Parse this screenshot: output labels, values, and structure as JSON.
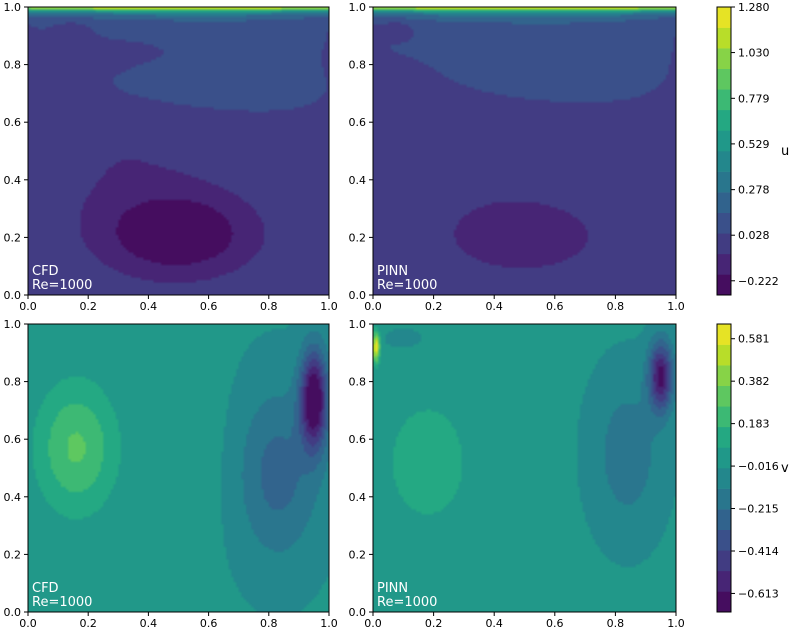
{
  "chart_data": [
    {
      "type": "heatmap",
      "panel": "u-cfd",
      "field": "u",
      "annotation": [
        "CFD",
        "Re=1000"
      ],
      "xlim": [
        0.0,
        1.0
      ],
      "ylim": [
        0.0,
        1.0
      ],
      "xticks": [
        "0.0",
        "0.2",
        "0.4",
        "0.6",
        "0.8",
        "1.0"
      ],
      "yticks": [
        "0.0",
        "0.2",
        "0.4",
        "0.6",
        "0.8",
        "1.0"
      ],
      "value_range": [
        -0.3,
        1.28
      ],
      "primary_vortex_center": [
        0.5,
        0.21
      ],
      "min_value_approx": -0.3,
      "lid_value": 1.28
    },
    {
      "type": "heatmap",
      "panel": "u-pinn",
      "field": "u",
      "annotation": [
        "PINN",
        "Re=1000"
      ],
      "xlim": [
        0.0,
        1.0
      ],
      "ylim": [
        0.0,
        1.0
      ],
      "xticks": [
        "0.0",
        "0.2",
        "0.4",
        "0.6",
        "0.8",
        "1.0"
      ],
      "yticks": [
        "0.0",
        "0.2",
        "0.4",
        "0.6",
        "0.8",
        "1.0"
      ],
      "value_range": [
        -0.3,
        1.28
      ],
      "primary_vortex_center": [
        0.5,
        0.2
      ],
      "min_value_approx": -0.14,
      "lid_value": 1.28
    },
    {
      "type": "heatmap",
      "panel": "v-cfd",
      "field": "v",
      "annotation": [
        "CFD",
        "Re=1000"
      ],
      "xlim": [
        0.0,
        1.0
      ],
      "ylim": [
        0.0,
        1.0
      ],
      "xticks": [
        "0.0",
        "0.2",
        "0.4",
        "0.6",
        "0.8",
        "1.0"
      ],
      "yticks": [
        "0.0",
        "0.2",
        "0.4",
        "0.6",
        "0.8",
        "1.0"
      ],
      "value_range": [
        -0.7,
        0.65
      ],
      "positive_peak": [
        0.16,
        0.57
      ],
      "negative_peak": [
        0.95,
        0.74
      ],
      "max_value_approx": 0.28,
      "min_value_approx": -0.7
    },
    {
      "type": "heatmap",
      "panel": "v-pinn",
      "field": "v",
      "annotation": [
        "PINN",
        "Re=1000"
      ],
      "xlim": [
        0.0,
        1.0
      ],
      "ylim": [
        0.0,
        1.0
      ],
      "xticks": [
        "0.0",
        "0.2",
        "0.4",
        "0.6",
        "0.8",
        "1.0"
      ],
      "yticks": [
        "0.0",
        "0.2",
        "0.4",
        "0.6",
        "0.8",
        "1.0"
      ],
      "value_range": [
        -0.7,
        0.65
      ],
      "positive_peak": [
        0.18,
        0.52
      ],
      "negative_peak": [
        0.95,
        0.82
      ],
      "max_value_approx": 0.14,
      "min_value_approx": -0.6,
      "corner_spike": [
        0.01,
        0.92
      ]
    }
  ],
  "colorbars": [
    {
      "label": "u",
      "ticks": [
        "1.280",
        "1.030",
        "0.779",
        "0.529",
        "0.278",
        "0.028",
        "−0.222"
      ],
      "tick_values": [
        1.28,
        1.03,
        0.779,
        0.529,
        0.278,
        0.028,
        -0.222
      ],
      "range": [
        -0.3,
        1.28
      ]
    },
    {
      "label": "v",
      "ticks": [
        "0.581",
        "0.382",
        "0.183",
        "−0.016",
        "−0.215",
        "−0.414",
        "−0.613"
      ],
      "tick_values": [
        0.581,
        0.382,
        0.183,
        -0.016,
        -0.215,
        -0.414,
        -0.613
      ],
      "range": [
        -0.7,
        0.65
      ]
    }
  ],
  "colormap": "viridis"
}
